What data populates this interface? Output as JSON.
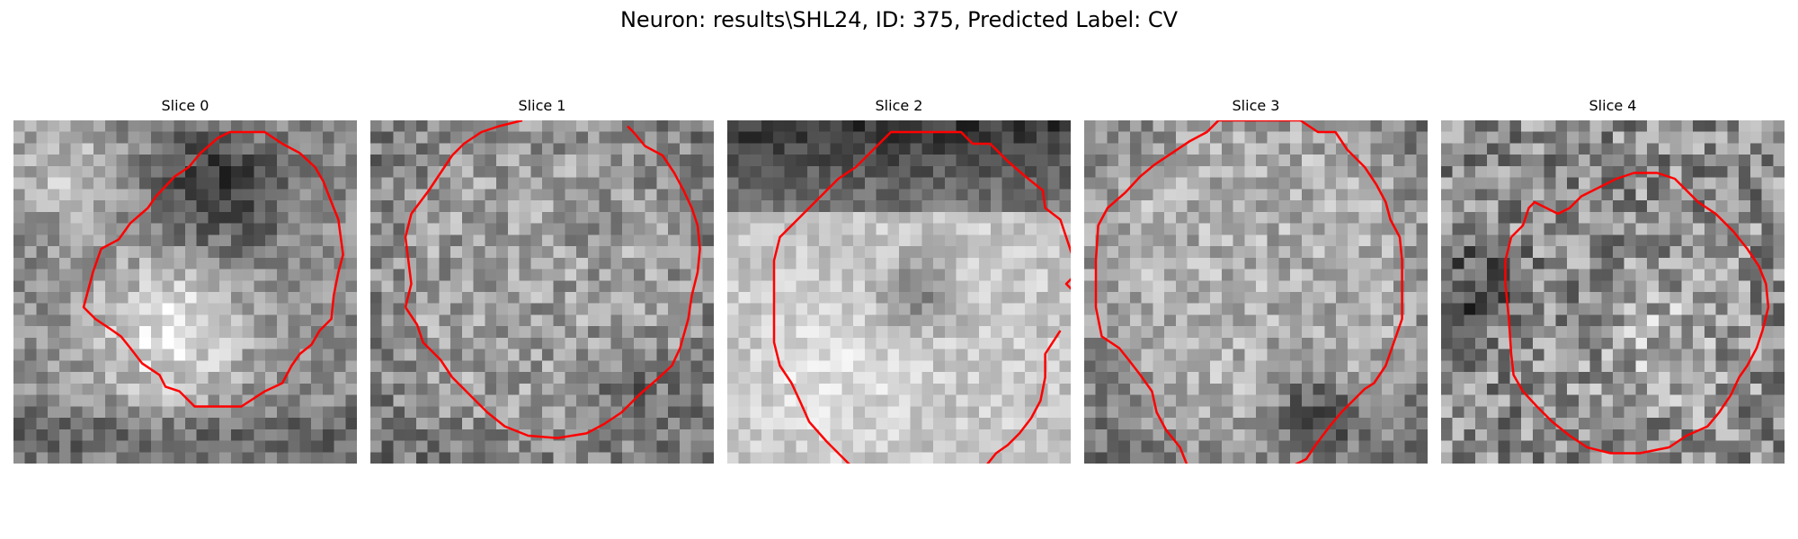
{
  "figure": {
    "title": "Neuron: results\\SHL24, ID: 375, Predicted Label: CV"
  },
  "colors": {
    "contour": "#ff0000"
  },
  "panels": [
    {
      "label": "Slice 0"
    },
    {
      "label": "Slice 1"
    },
    {
      "label": "Slice 2"
    },
    {
      "label": "Slice 3"
    },
    {
      "label": "Slice 4"
    }
  ]
}
